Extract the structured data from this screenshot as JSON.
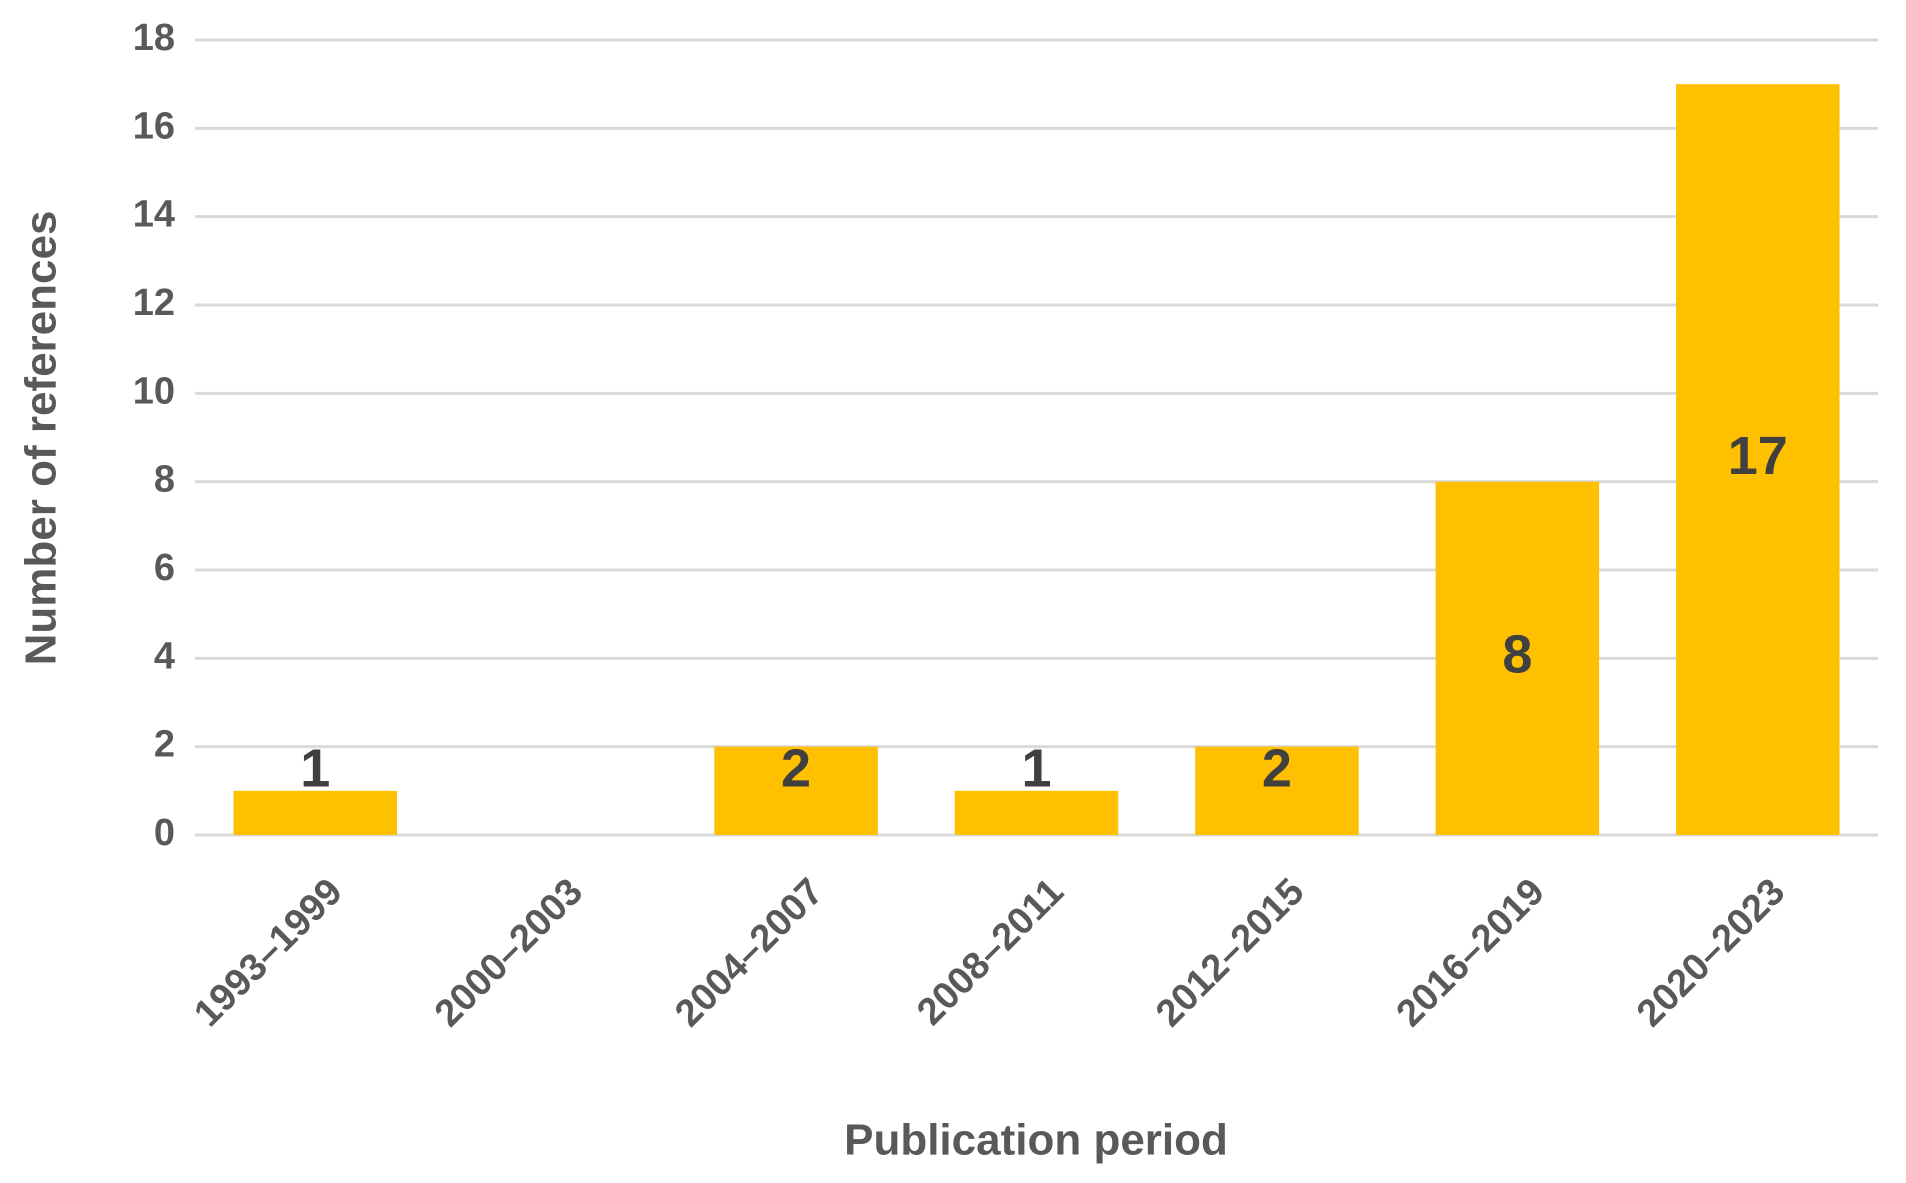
{
  "chart_data": {
    "type": "bar",
    "x_label": "Publication period",
    "y_label": "Number of references",
    "categories": [
      "1993–1999",
      "2000–2003",
      "2004–2007",
      "2008–2011",
      "2012–2015",
      "2016–2019",
      "2020–2023"
    ],
    "values": [
      1,
      null,
      2,
      1,
      2,
      8,
      17
    ],
    "color": "#ffc000",
    "ylim": [
      0,
      18
    ],
    "yticks": [
      0,
      2,
      4,
      6,
      8,
      10,
      12,
      14,
      16,
      18
    ],
    "grid": true
  }
}
